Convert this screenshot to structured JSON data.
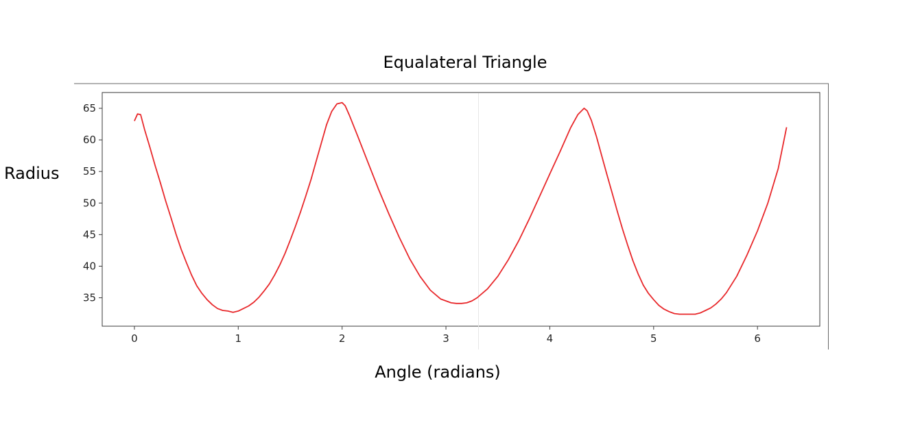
{
  "chart_data": {
    "type": "line",
    "title": "Equalateral Triangle",
    "xlabel": "Angle (radians)",
    "ylabel": "Radius",
    "xlim": [
      -0.31,
      6.6
    ],
    "ylim": [
      30.5,
      67.5
    ],
    "xticks": [
      0,
      1,
      2,
      3,
      4,
      5,
      6
    ],
    "yticks": [
      35,
      40,
      45,
      50,
      55,
      60,
      65
    ],
    "grid": false,
    "line_color": "#e8272a",
    "series": [
      {
        "x": [
          0.0,
          0.03,
          0.06,
          0.1,
          0.15,
          0.2,
          0.25,
          0.3,
          0.35,
          0.4,
          0.45,
          0.5,
          0.55,
          0.6,
          0.65,
          0.7,
          0.75,
          0.8,
          0.85,
          0.9,
          0.95,
          1.0,
          1.05,
          1.1,
          1.15,
          1.2,
          1.25,
          1.3,
          1.35,
          1.4,
          1.45,
          1.5,
          1.55,
          1.6,
          1.65,
          1.7,
          1.75,
          1.8,
          1.85,
          1.9,
          1.95,
          2.0,
          2.03,
          2.07,
          2.15,
          2.25,
          2.35,
          2.45,
          2.55,
          2.65,
          2.75,
          2.85,
          2.95,
          3.05,
          3.1,
          3.15,
          3.2,
          3.25,
          3.3,
          3.4,
          3.5,
          3.6,
          3.7,
          3.8,
          3.9,
          4.0,
          4.1,
          4.2,
          4.27,
          4.33,
          4.36,
          4.4,
          4.45,
          4.5,
          4.55,
          4.6,
          4.65,
          4.7,
          4.75,
          4.8,
          4.85,
          4.9,
          4.95,
          5.0,
          5.05,
          5.1,
          5.15,
          5.2,
          5.25,
          5.3,
          5.35,
          5.4,
          5.45,
          5.5,
          5.55,
          5.6,
          5.65,
          5.7,
          5.8,
          5.9,
          6.0,
          6.1,
          6.2,
          6.28
        ],
        "y": [
          63.0,
          64.1,
          64.0,
          61.5,
          58.8,
          55.9,
          53.2,
          50.4,
          47.8,
          45.1,
          42.7,
          40.6,
          38.6,
          36.9,
          35.7,
          34.7,
          33.9,
          33.3,
          33.0,
          32.9,
          32.7,
          32.9,
          33.3,
          33.7,
          34.3,
          35.1,
          36.1,
          37.2,
          38.6,
          40.2,
          42.0,
          44.1,
          46.3,
          48.6,
          51.1,
          53.7,
          56.6,
          59.5,
          62.4,
          64.5,
          65.7,
          65.9,
          65.4,
          63.9,
          60.6,
          56.4,
          52.2,
          48.3,
          44.6,
          41.2,
          38.4,
          36.2,
          34.8,
          34.2,
          34.1,
          34.1,
          34.2,
          34.5,
          35.0,
          36.4,
          38.4,
          41.0,
          44.0,
          47.4,
          51.0,
          54.6,
          58.2,
          61.9,
          64.0,
          65.0,
          64.6,
          63.1,
          60.5,
          57.5,
          54.5,
          51.6,
          48.7,
          45.9,
          43.3,
          40.9,
          38.8,
          37.0,
          35.7,
          34.7,
          33.8,
          33.2,
          32.8,
          32.5,
          32.4,
          32.4,
          32.4,
          32.4,
          32.6,
          33.0,
          33.4,
          34.0,
          34.8,
          35.8,
          38.4,
          41.8,
          45.6,
          50.0,
          55.5,
          62.0
        ]
      }
    ]
  }
}
